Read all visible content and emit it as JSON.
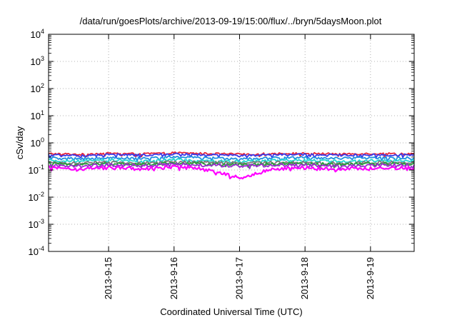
{
  "chart_data": {
    "type": "line",
    "title": "/data/run/goesPlots/archive/2013-09-19/15:00/flux/../bryn/5daysMoon.plot",
    "xlabel": "Coordinated Universal Time (UTC)",
    "ylabel": "cSv/day",
    "yscale": "log",
    "ylim": [
      0.0001,
      10000
    ],
    "xlim": [
      "2013-09-14 02:00",
      "2013-09-19 16:00"
    ],
    "yticks": [
      {
        "base": "10",
        "exp": "-4"
      },
      {
        "base": "10",
        "exp": "-3"
      },
      {
        "base": "10",
        "exp": "-2"
      },
      {
        "base": "10",
        "exp": "-1"
      },
      {
        "base": "10",
        "exp": "0"
      },
      {
        "base": "10",
        "exp": "1"
      },
      {
        "base": "10",
        "exp": "2"
      },
      {
        "base": "10",
        "exp": "3"
      },
      {
        "base": "10",
        "exp": "4"
      }
    ],
    "xticks": [
      {
        "label": "2013-9-15",
        "value": "2013-09-15 00:00"
      },
      {
        "label": "2013-9-16",
        "value": "2013-09-16 00:00"
      },
      {
        "label": "2013-9-17",
        "value": "2013-09-17 00:00"
      },
      {
        "label": "2013-9-18",
        "value": "2013-09-18 00:00"
      },
      {
        "label": "2013-9-19",
        "value": "2013-09-19 00:00"
      }
    ],
    "grid": true,
    "x": [
      "2013-09-14 02:00",
      "2013-09-14 12:00",
      "2013-09-15 00:00",
      "2013-09-15 12:00",
      "2013-09-16 00:00",
      "2013-09-16 12:00",
      "2013-09-17 00:00",
      "2013-09-17 12:00",
      "2013-09-18 00:00",
      "2013-09-18 12:00",
      "2013-09-19 00:00",
      "2013-09-19 16:00"
    ],
    "series": [
      {
        "color": "#e8253a",
        "values": [
          0.4,
          0.38,
          0.41,
          0.39,
          0.43,
          0.4,
          0.38,
          0.4,
          0.41,
          0.39,
          0.4,
          0.4
        ]
      },
      {
        "color": "#3a3ae8",
        "values": [
          0.36,
          0.34,
          0.37,
          0.35,
          0.39,
          0.36,
          0.34,
          0.36,
          0.37,
          0.35,
          0.36,
          0.36
        ]
      },
      {
        "color": "#1f8fe0",
        "values": [
          0.28,
          0.26,
          0.29,
          0.27,
          0.3,
          0.28,
          0.26,
          0.28,
          0.29,
          0.27,
          0.28,
          0.28
        ]
      },
      {
        "color": "#20d7d0",
        "values": [
          0.22,
          0.21,
          0.23,
          0.21,
          0.24,
          0.22,
          0.21,
          0.22,
          0.23,
          0.21,
          0.22,
          0.22
        ]
      },
      {
        "color": "#7a7a7a",
        "values": [
          0.19,
          0.18,
          0.19,
          0.18,
          0.2,
          0.19,
          0.18,
          0.19,
          0.19,
          0.18,
          0.19,
          0.19
        ]
      },
      {
        "color": "#2a9d3a",
        "values": [
          0.17,
          0.16,
          0.17,
          0.16,
          0.18,
          0.17,
          0.16,
          0.17,
          0.17,
          0.16,
          0.17,
          0.17
        ]
      },
      {
        "color": "#9a2bd0",
        "values": [
          0.15,
          0.14,
          0.15,
          0.14,
          0.16,
          0.15,
          0.14,
          0.15,
          0.15,
          0.14,
          0.15,
          0.15
        ]
      },
      {
        "color": "#ff00ff",
        "values": [
          0.12,
          0.11,
          0.12,
          0.11,
          0.13,
          0.11,
          0.05,
          0.11,
          0.12,
          0.11,
          0.12,
          0.12
        ]
      }
    ]
  }
}
